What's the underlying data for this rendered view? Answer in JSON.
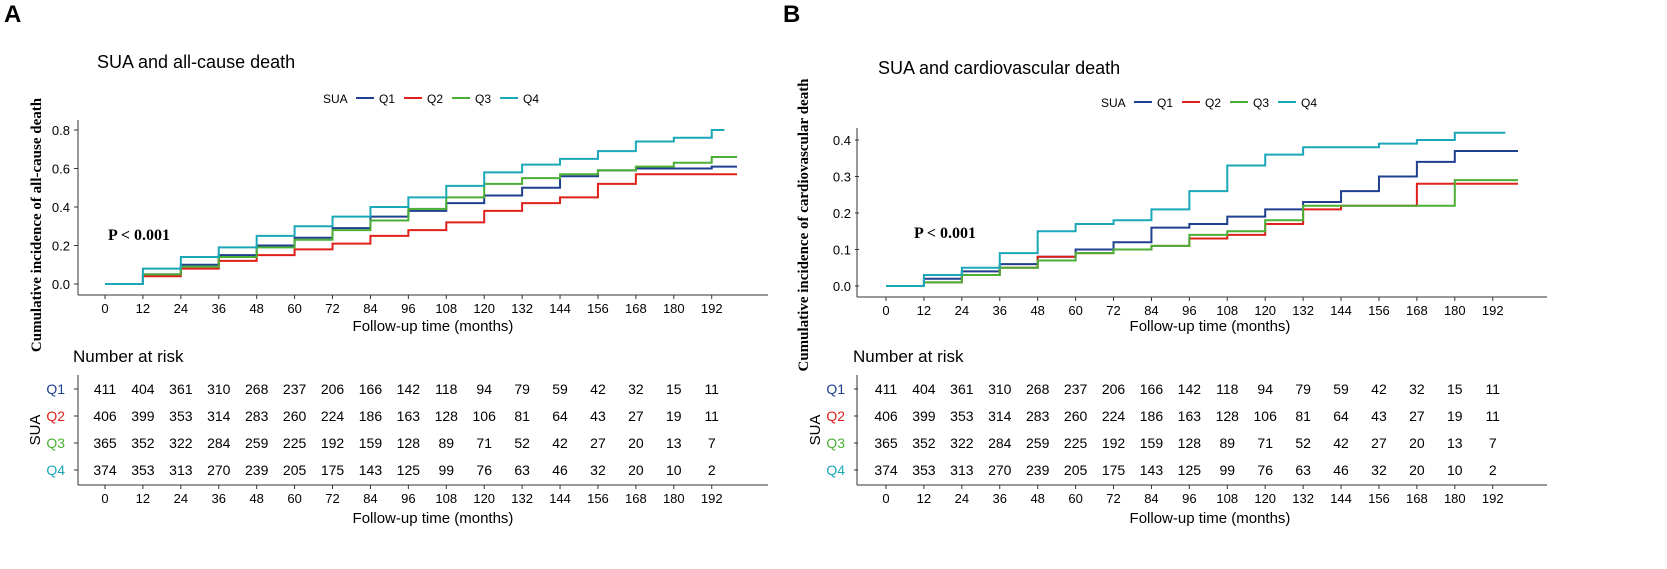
{
  "panels": [
    {
      "letter": "A",
      "title": "SUA and all-cause death",
      "ylabel": "Cumulative incidence of all-cause death",
      "p_value": "P < 0.001",
      "legend_title": "SUA",
      "legend": [
        "Q1",
        "Q2",
        "Q3",
        "Q4"
      ],
      "yticks": [
        "0.0",
        "0.2",
        "0.4",
        "0.6",
        "0.8"
      ],
      "xlabel": "Follow-up time (months)",
      "risk_title": "Number at risk",
      "risk_ylabel": "SUA",
      "risk_xlabel": "Follow-up time (months)"
    },
    {
      "letter": "B",
      "title": "SUA and cardiovascular death",
      "ylabel": "Cumulative incidence of cardiovascular death",
      "p_value": "P < 0.001",
      "legend_title": "SUA",
      "legend": [
        "Q1",
        "Q2",
        "Q3",
        "Q4"
      ],
      "yticks": [
        "0.0",
        "0.1",
        "0.2",
        "0.3",
        "0.4"
      ],
      "xlabel": "Follow-up time (months)",
      "risk_title": "Number at risk",
      "risk_ylabel": "SUA",
      "risk_xlabel": "Follow-up time (months)"
    }
  ],
  "colors": {
    "Q1": "#1f3f8f",
    "Q2": "#e0201b",
    "Q3": "#4caf35",
    "Q4": "#1aa7b8"
  },
  "xticks": [
    "0",
    "12",
    "24",
    "36",
    "48",
    "60",
    "72",
    "84",
    "96",
    "108",
    "120",
    "132",
    "144",
    "156",
    "168",
    "180",
    "192"
  ],
  "chart_data": [
    {
      "type": "line",
      "title": "SUA and all-cause death",
      "xlabel": "Follow-up time (months)",
      "ylabel": "Cumulative incidence of all-cause death",
      "xlim": [
        0,
        200
      ],
      "ylim": [
        0,
        0.85
      ],
      "series": [
        {
          "name": "Q1",
          "x": [
            0,
            12,
            24,
            36,
            48,
            60,
            72,
            84,
            96,
            108,
            120,
            132,
            144,
            156,
            168,
            180,
            192,
            200
          ],
          "y": [
            0,
            0.05,
            0.1,
            0.15,
            0.2,
            0.24,
            0.29,
            0.35,
            0.38,
            0.42,
            0.46,
            0.5,
            0.56,
            0.59,
            0.6,
            0.6,
            0.61,
            0.61
          ]
        },
        {
          "name": "Q2",
          "x": [
            0,
            12,
            24,
            36,
            48,
            60,
            72,
            84,
            96,
            108,
            120,
            132,
            144,
            156,
            168,
            180,
            192,
            200
          ],
          "y": [
            0,
            0.04,
            0.08,
            0.12,
            0.15,
            0.18,
            0.21,
            0.25,
            0.28,
            0.32,
            0.38,
            0.42,
            0.45,
            0.52,
            0.57,
            0.57,
            0.57,
            0.57
          ]
        },
        {
          "name": "Q3",
          "x": [
            0,
            12,
            24,
            36,
            48,
            60,
            72,
            84,
            96,
            108,
            120,
            132,
            144,
            156,
            168,
            180,
            192,
            200
          ],
          "y": [
            0,
            0.05,
            0.09,
            0.14,
            0.19,
            0.23,
            0.28,
            0.33,
            0.39,
            0.45,
            0.52,
            0.55,
            0.57,
            0.59,
            0.61,
            0.63,
            0.66,
            0.66
          ]
        },
        {
          "name": "Q4",
          "x": [
            0,
            12,
            24,
            36,
            48,
            60,
            72,
            84,
            96,
            108,
            120,
            132,
            144,
            156,
            168,
            180,
            192,
            196
          ],
          "y": [
            0,
            0.08,
            0.14,
            0.19,
            0.25,
            0.3,
            0.35,
            0.4,
            0.45,
            0.51,
            0.58,
            0.62,
            0.65,
            0.69,
            0.74,
            0.76,
            0.8,
            0.8
          ]
        }
      ],
      "annotations": [
        "P < 0.001"
      ],
      "risk_table": {
        "Q1": [
          411,
          404,
          361,
          310,
          268,
          237,
          206,
          166,
          142,
          118,
          94,
          79,
          59,
          42,
          32,
          15,
          11
        ],
        "Q2": [
          406,
          399,
          353,
          314,
          283,
          260,
          224,
          186,
          163,
          128,
          106,
          81,
          64,
          43,
          27,
          19,
          11
        ],
        "Q3": [
          365,
          352,
          322,
          284,
          259,
          225,
          192,
          159,
          128,
          89,
          71,
          52,
          42,
          27,
          20,
          13,
          7
        ],
        "Q4": [
          374,
          353,
          313,
          270,
          239,
          205,
          175,
          143,
          125,
          99,
          76,
          63,
          46,
          32,
          20,
          10,
          2
        ]
      }
    },
    {
      "type": "line",
      "title": "SUA and cardiovascular death",
      "xlabel": "Follow-up time (months)",
      "ylabel": "Cumulative incidence of cardiovascular death",
      "xlim": [
        0,
        200
      ],
      "ylim": [
        0,
        0.43
      ],
      "series": [
        {
          "name": "Q1",
          "x": [
            0,
            12,
            24,
            36,
            48,
            60,
            72,
            84,
            96,
            108,
            120,
            132,
            144,
            156,
            168,
            180,
            192,
            200
          ],
          "y": [
            0,
            0.02,
            0.04,
            0.06,
            0.08,
            0.1,
            0.12,
            0.16,
            0.17,
            0.19,
            0.21,
            0.23,
            0.26,
            0.3,
            0.34,
            0.37,
            0.37,
            0.37
          ]
        },
        {
          "name": "Q2",
          "x": [
            0,
            12,
            24,
            36,
            48,
            60,
            72,
            84,
            96,
            108,
            120,
            132,
            144,
            156,
            168,
            180,
            192,
            200
          ],
          "y": [
            0,
            0.01,
            0.03,
            0.05,
            0.08,
            0.09,
            0.1,
            0.11,
            0.13,
            0.14,
            0.17,
            0.21,
            0.22,
            0.22,
            0.28,
            0.28,
            0.28,
            0.28
          ]
        },
        {
          "name": "Q3",
          "x": [
            0,
            12,
            24,
            36,
            48,
            60,
            72,
            84,
            96,
            108,
            120,
            132,
            144,
            156,
            168,
            180,
            192,
            200
          ],
          "y": [
            0,
            0.01,
            0.03,
            0.05,
            0.07,
            0.09,
            0.1,
            0.11,
            0.14,
            0.15,
            0.18,
            0.22,
            0.22,
            0.22,
            0.22,
            0.29,
            0.29,
            0.29
          ]
        },
        {
          "name": "Q4",
          "x": [
            0,
            12,
            24,
            36,
            48,
            60,
            72,
            84,
            96,
            108,
            120,
            132,
            144,
            156,
            168,
            180,
            192,
            196
          ],
          "y": [
            0,
            0.03,
            0.05,
            0.09,
            0.15,
            0.17,
            0.18,
            0.21,
            0.26,
            0.33,
            0.36,
            0.38,
            0.38,
            0.39,
            0.4,
            0.42,
            0.42,
            0.42
          ]
        }
      ],
      "annotations": [
        "P < 0.001"
      ],
      "risk_table": {
        "Q1": [
          411,
          404,
          361,
          310,
          268,
          237,
          206,
          166,
          142,
          118,
          94,
          79,
          59,
          42,
          32,
          15,
          11
        ],
        "Q2": [
          406,
          399,
          353,
          314,
          283,
          260,
          224,
          186,
          163,
          128,
          106,
          81,
          64,
          43,
          27,
          19,
          11
        ],
        "Q3": [
          365,
          352,
          322,
          284,
          259,
          225,
          192,
          159,
          128,
          89,
          71,
          52,
          42,
          27,
          20,
          13,
          7
        ],
        "Q4": [
          374,
          353,
          313,
          270,
          239,
          205,
          175,
          143,
          125,
          99,
          76,
          63,
          46,
          32,
          20,
          10,
          2
        ]
      }
    }
  ]
}
